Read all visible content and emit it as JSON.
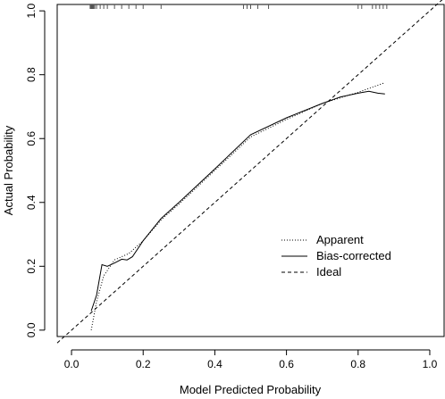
{
  "chart_data": {
    "type": "line",
    "title": "",
    "xlabel": "Model Predicted Probability",
    "ylabel": "Actual Probability",
    "xlim": [
      -0.04,
      1.04
    ],
    "ylim": [
      -0.02,
      1.02
    ],
    "x_ticks": [
      "0.0",
      "0.2",
      "0.4",
      "0.6",
      "0.8",
      "1.0"
    ],
    "y_ticks": [
      "0.0",
      "0.2",
      "0.4",
      "0.6",
      "0.8",
      "1.0"
    ],
    "grid": false,
    "legend_position": "bottom-right",
    "series": [
      {
        "name": "Apparent",
        "style": "dotted",
        "color": "#000000",
        "points": [
          [
            0.055,
            0.0
          ],
          [
            0.07,
            0.09
          ],
          [
            0.09,
            0.17
          ],
          [
            0.12,
            0.22
          ],
          [
            0.16,
            0.24
          ],
          [
            0.2,
            0.28
          ],
          [
            0.25,
            0.345
          ],
          [
            0.3,
            0.395
          ],
          [
            0.4,
            0.5
          ],
          [
            0.5,
            0.605
          ],
          [
            0.6,
            0.66
          ],
          [
            0.7,
            0.71
          ],
          [
            0.8,
            0.745
          ],
          [
            0.875,
            0.775
          ]
        ]
      },
      {
        "name": "Bias-corrected",
        "style": "solid",
        "color": "#000000",
        "points": [
          [
            0.055,
            0.06
          ],
          [
            0.07,
            0.11
          ],
          [
            0.085,
            0.205
          ],
          [
            0.1,
            0.2
          ],
          [
            0.12,
            0.21
          ],
          [
            0.14,
            0.222
          ],
          [
            0.155,
            0.22
          ],
          [
            0.17,
            0.23
          ],
          [
            0.2,
            0.28
          ],
          [
            0.25,
            0.35
          ],
          [
            0.3,
            0.4
          ],
          [
            0.4,
            0.505
          ],
          [
            0.5,
            0.612
          ],
          [
            0.6,
            0.665
          ],
          [
            0.7,
            0.71
          ],
          [
            0.75,
            0.73
          ],
          [
            0.8,
            0.742
          ],
          [
            0.83,
            0.748
          ],
          [
            0.855,
            0.742
          ],
          [
            0.875,
            0.74
          ]
        ]
      },
      {
        "name": "Ideal",
        "style": "dashed",
        "color": "#000000",
        "points": [
          [
            -0.04,
            -0.04
          ],
          [
            1.04,
            1.04
          ]
        ]
      }
    ],
    "rug": [
      0.052,
      0.053,
      0.054,
      0.055,
      0.056,
      0.057,
      0.058,
      0.059,
      0.06,
      0.061,
      0.062,
      0.065,
      0.07,
      0.08,
      0.09,
      0.1,
      0.12,
      0.14,
      0.16,
      0.18,
      0.2,
      0.25,
      0.48,
      0.49,
      0.5,
      0.52,
      0.55,
      0.8,
      0.81,
      0.84,
      0.85,
      0.86,
      0.87,
      0.88
    ]
  }
}
